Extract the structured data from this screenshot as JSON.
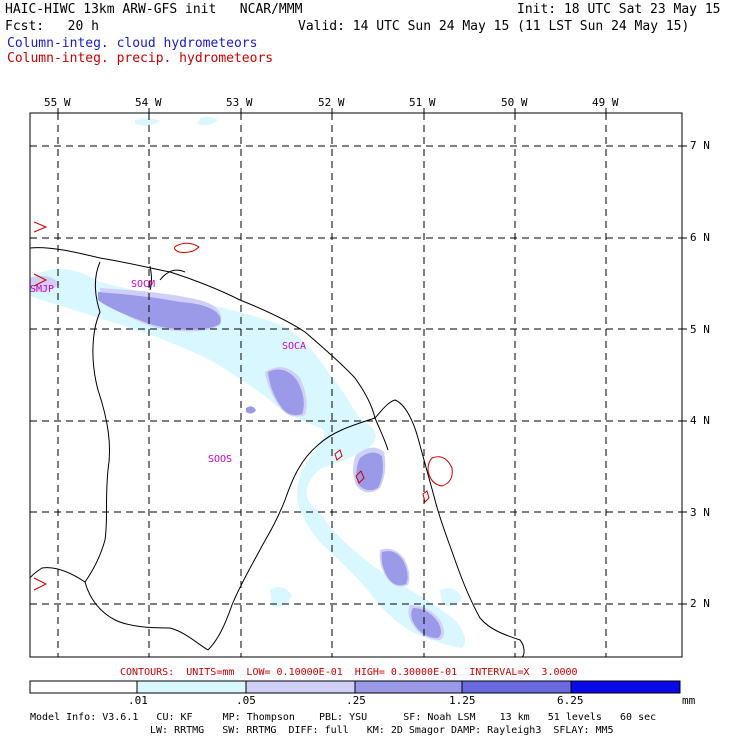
{
  "header": {
    "title_left": "HAIC-HIWC 13km ARW-GFS init   NCAR/MMM",
    "init": "Init: 18 UTC Sat 23 May 15",
    "fcst": "Fcst:   20 h",
    "valid": "Valid: 14 UTC Sun 24 May 15 (11 LST Sun 24 May 15)",
    "field_cloud": "Column-integ. cloud hydrometeors",
    "field_precip": "Column-integ. precip. hydrometeors"
  },
  "colors": {
    "cloud_label": "#1a1acc",
    "precip_label": "#cc0000",
    "station": "#cc00cc",
    "fill_1": "#d9f7ff",
    "fill_2": "#cfcff7",
    "fill_3": "#9a9ae8",
    "fill_4": "#6a6ae0",
    "fill_5": "#3434e6",
    "fill_6": "#0a0ae8"
  },
  "map": {
    "lon_labels": [
      "55 W",
      "54 W",
      "53 W",
      "52 W",
      "51 W",
      "50 W",
      "49 W"
    ],
    "lat_labels": [
      "7 N",
      "6 N",
      "5 N",
      "4 N",
      "3 N",
      "2 N"
    ],
    "stations": [
      "SMJP",
      "SOCM",
      "SOCA",
      "SOOS"
    ]
  },
  "contours_line": "CONTOURS:  UNITS=mm  LOW= 0.10000E-01  HIGH= 0.30000E-01  INTERVAL=X  3.0000",
  "colorbar": {
    "ticks": [
      ".01",
      ".05",
      ".25",
      "1.25",
      "6.25"
    ],
    "units": "mm"
  },
  "footer": {
    "line1": "Model Info: V3.6.1   CU: KF     MP: Thompson    PBL: YSU      SF: Noah LSM    13 km   51 levels   60 sec",
    "line2": "LW: RRTMG   SW: RRTMG  DIFF: full   KM: 2D Smagor DAMP: Rayleigh3  SFLAY: MM5"
  }
}
